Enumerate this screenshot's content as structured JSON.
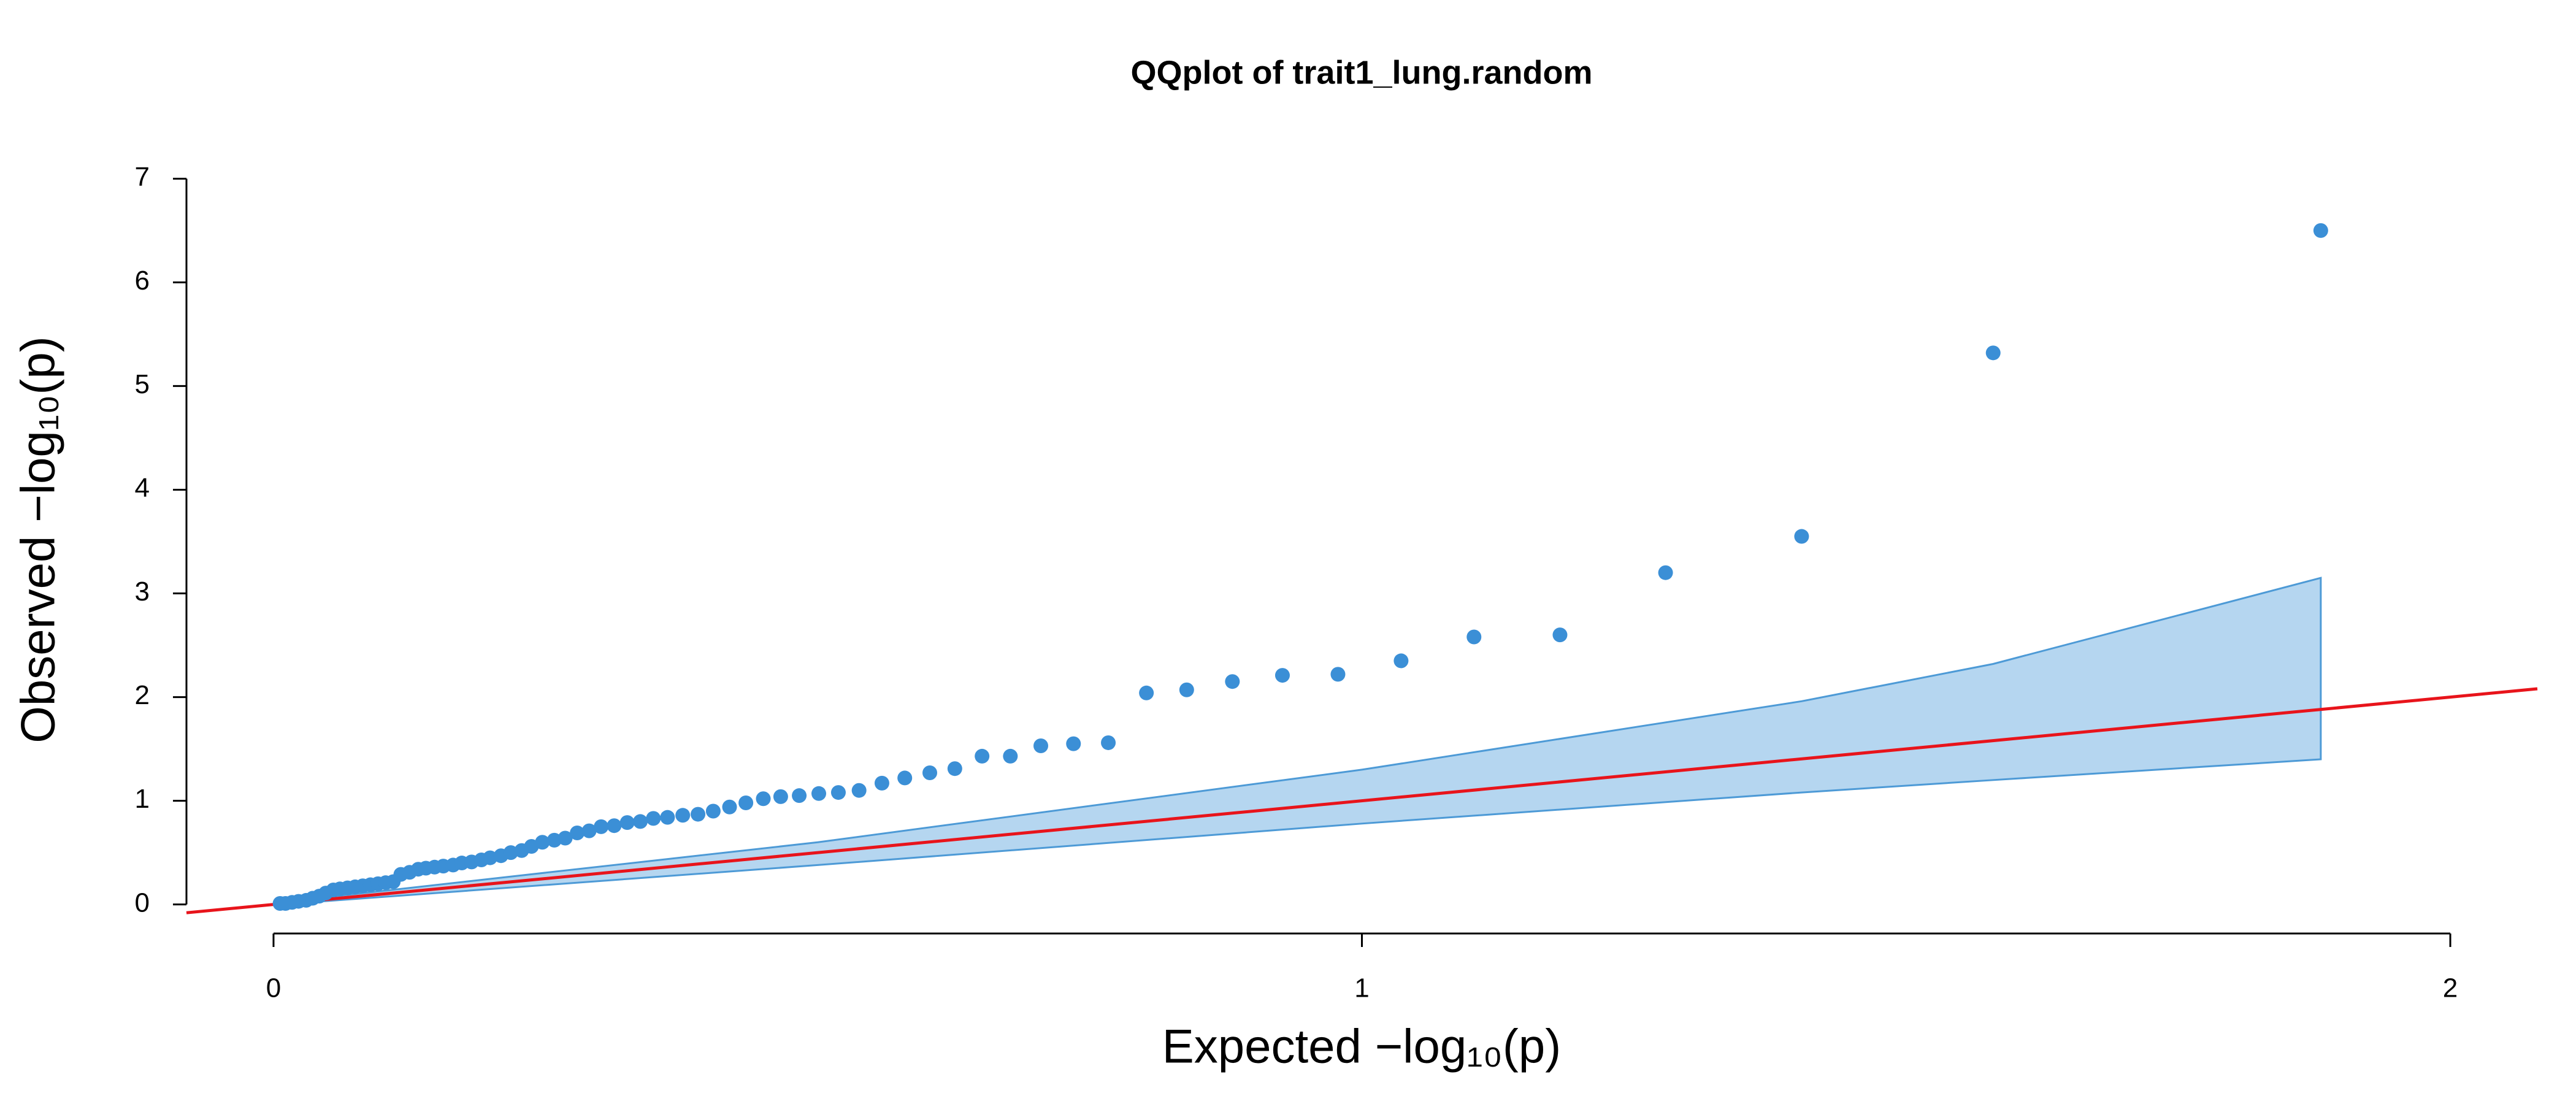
{
  "chart_data": {
    "type": "qqplot",
    "title": "QQplot of trait1_lung.random",
    "xlabel": "Expected  −log₁₀(p)",
    "ylabel": "Observed  −log₁₀(p)",
    "xlim": [
      -0.08,
      2.08
    ],
    "ylim": [
      -0.28,
      7.28
    ],
    "xticks": [
      0,
      1,
      2
    ],
    "yticks": [
      0,
      1,
      2,
      3,
      4,
      5,
      6,
      7
    ],
    "point_color": "#3b8fd6",
    "x": [
      0.006,
      0.011,
      0.017,
      0.023,
      0.03,
      0.036,
      0.042,
      0.048,
      0.055,
      0.061,
      0.068,
      0.075,
      0.082,
      0.089,
      0.096,
      0.103,
      0.11,
      0.117,
      0.125,
      0.133,
      0.14,
      0.148,
      0.156,
      0.165,
      0.173,
      0.182,
      0.191,
      0.199,
      0.209,
      0.218,
      0.228,
      0.237,
      0.247,
      0.258,
      0.268,
      0.279,
      0.29,
      0.301,
      0.313,
      0.325,
      0.337,
      0.349,
      0.362,
      0.376,
      0.39,
      0.404,
      0.419,
      0.434,
      0.45,
      0.466,
      0.483,
      0.501,
      0.519,
      0.538,
      0.559,
      0.58,
      0.603,
      0.626,
      0.651,
      0.677,
      0.705,
      0.735,
      0.767,
      0.802,
      0.839,
      0.881,
      0.927,
      0.978,
      1.036,
      1.103,
      1.182,
      1.279,
      1.404,
      1.58,
      1.881
    ],
    "values": [
      0.01,
      0.01,
      0.02,
      0.03,
      0.04,
      0.06,
      0.08,
      0.11,
      0.14,
      0.15,
      0.16,
      0.17,
      0.18,
      0.19,
      0.2,
      0.21,
      0.22,
      0.29,
      0.31,
      0.34,
      0.35,
      0.36,
      0.37,
      0.38,
      0.4,
      0.41,
      0.43,
      0.45,
      0.47,
      0.5,
      0.52,
      0.56,
      0.6,
      0.62,
      0.64,
      0.69,
      0.71,
      0.75,
      0.76,
      0.79,
      0.8,
      0.83,
      0.84,
      0.86,
      0.87,
      0.9,
      0.94,
      0.98,
      1.02,
      1.04,
      1.05,
      1.07,
      1.08,
      1.1,
      1.17,
      1.22,
      1.27,
      1.31,
      1.43,
      1.43,
      1.53,
      1.55,
      1.56,
      2.04,
      2.07,
      2.15,
      2.21,
      2.22,
      2.35,
      2.58,
      2.6,
      3.2,
      3.55,
      5.32,
      6.5
    ],
    "band": {
      "x": [
        0.006,
        0.5,
        1.0,
        1.404,
        1.58,
        1.881
      ],
      "upper": [
        0.02,
        0.6,
        1.3,
        1.96,
        2.32,
        3.15
      ],
      "lower": [
        0.0,
        0.38,
        0.78,
        1.08,
        1.2,
        1.4
      ],
      "fill": "#b5d6f0",
      "stroke": "#4d9ad6"
    },
    "reference_line": {
      "slope": 1,
      "intercept": 0,
      "color": "#e8141b"
    }
  }
}
